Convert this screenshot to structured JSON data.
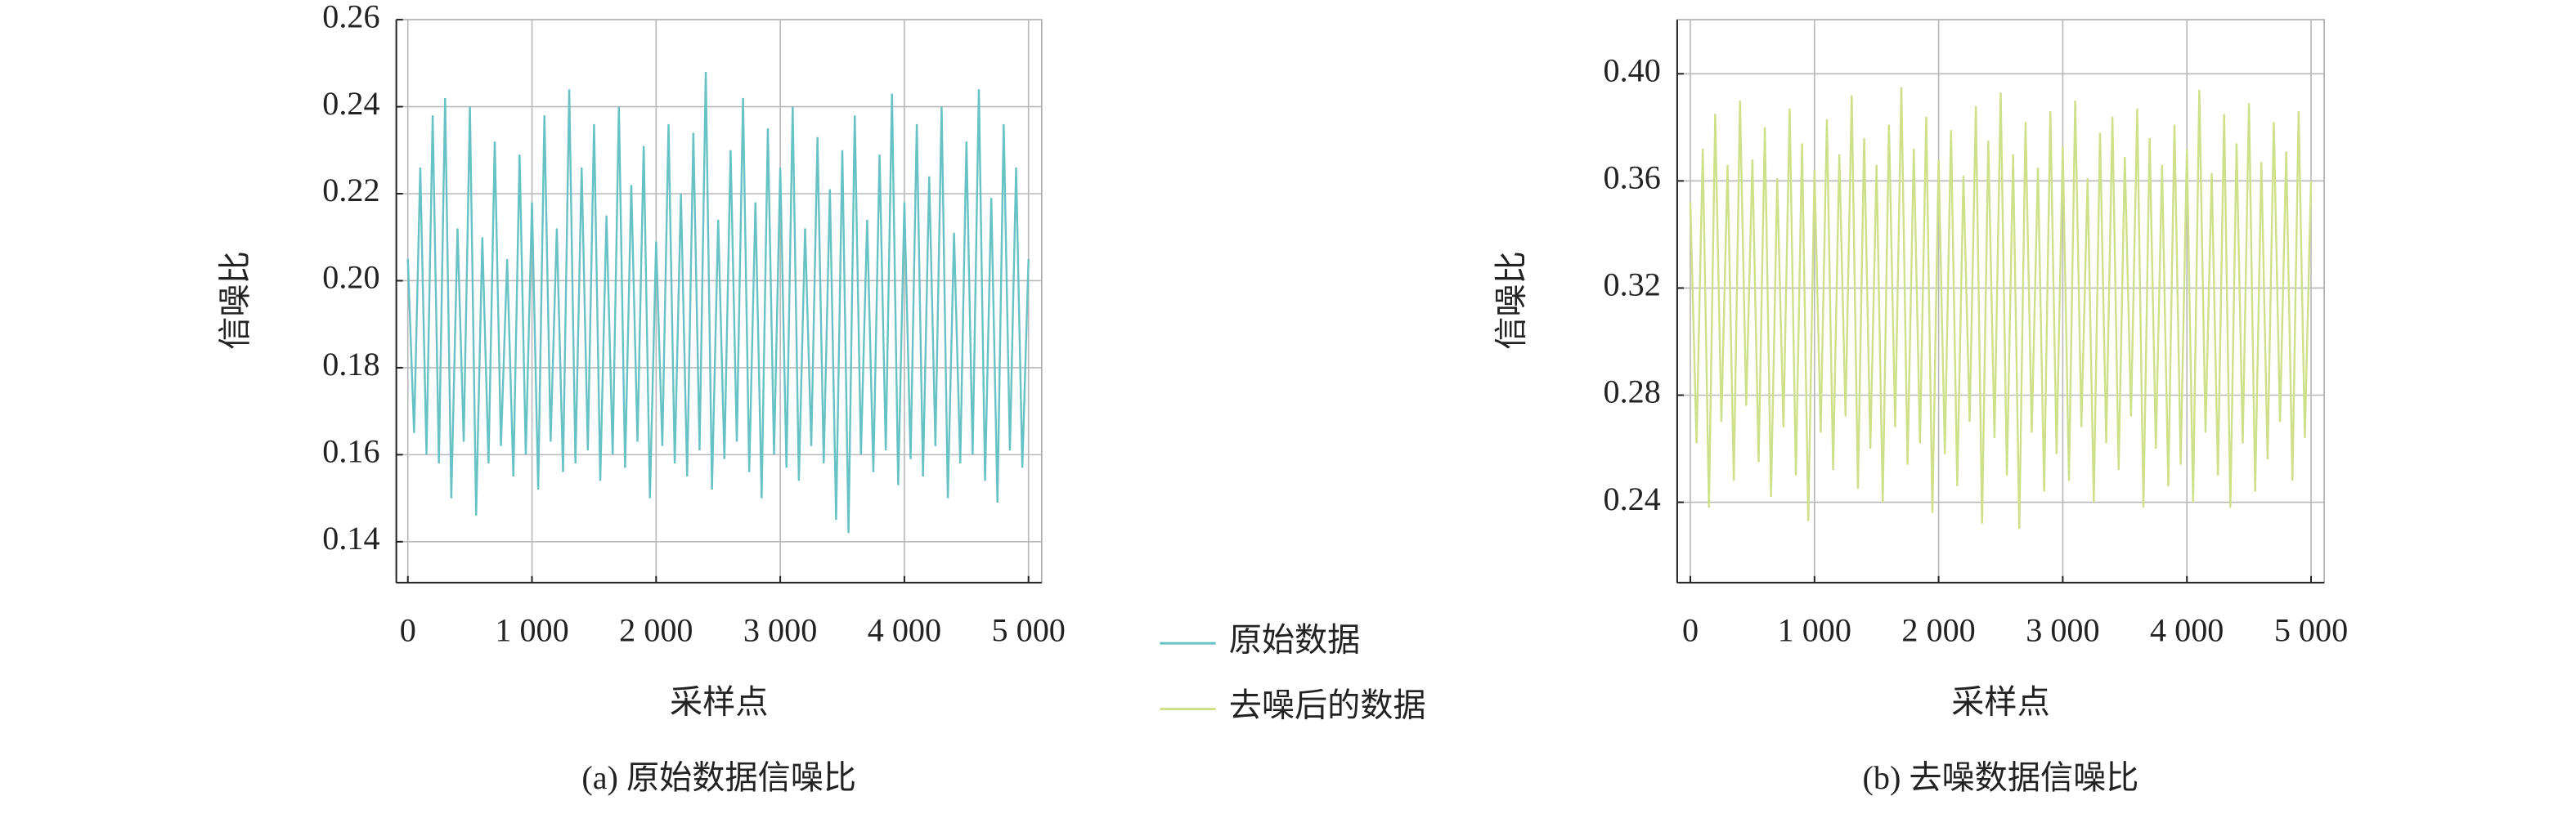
{
  "chart_data": [
    {
      "type": "line",
      "caption": "(a) 原始数据信噪比",
      "xlabel": "采样点",
      "ylabel": "信噪比",
      "xlim": [
        -93,
        5106
      ],
      "ylim": [
        0.1306,
        0.26
      ],
      "xticks": [
        0,
        {
          "value": 1000,
          "label": "1 000"
        },
        {
          "value": 2000,
          "label": "2 000"
        },
        {
          "value": 3000,
          "label": "3 000"
        },
        {
          "value": 4000,
          "label": "4 000"
        },
        {
          "value": 5000,
          "label": "5 000"
        }
      ],
      "yticks": [
        0.14,
        0.16,
        0.18,
        {
          "value": 0.2,
          "label": "0.20"
        },
        0.22,
        0.24,
        0.26
      ],
      "grid": true,
      "x": [
        0,
        50,
        100,
        150,
        200,
        250,
        300,
        350,
        400,
        450,
        500,
        550,
        600,
        650,
        700,
        750,
        800,
        850,
        900,
        950,
        1000,
        1050,
        1100,
        1150,
        1200,
        1250,
        1300,
        1350,
        1400,
        1450,
        1500,
        1550,
        1600,
        1650,
        1700,
        1750,
        1800,
        1850,
        1900,
        1950,
        2000,
        2050,
        2100,
        2150,
        2200,
        2250,
        2300,
        2350,
        2400,
        2450,
        2500,
        2550,
        2600,
        2650,
        2700,
        2750,
        2800,
        2850,
        2900,
        2950,
        3000,
        3050,
        3100,
        3150,
        3200,
        3250,
        3300,
        3350,
        3400,
        3450,
        3500,
        3550,
        3600,
        3650,
        3700,
        3750,
        3800,
        3850,
        3900,
        3950,
        4000,
        4050,
        4100,
        4150,
        4200,
        4250,
        4300,
        4350,
        4400,
        4450,
        4500,
        4550,
        4600,
        4650,
        4700,
        4750,
        4800,
        4850,
        4900,
        4950,
        5000
      ],
      "series": [
        {
          "name": "原始数据",
          "color": "#66c2c4",
          "values": [
            0.205,
            0.165,
            0.226,
            0.16,
            0.238,
            0.158,
            0.242,
            0.15,
            0.212,
            0.163,
            0.24,
            0.146,
            0.21,
            0.158,
            0.232,
            0.162,
            0.205,
            0.155,
            0.229,
            0.16,
            0.218,
            0.152,
            0.238,
            0.163,
            0.212,
            0.156,
            0.244,
            0.158,
            0.226,
            0.161,
            0.236,
            0.154,
            0.215,
            0.16,
            0.24,
            0.157,
            0.222,
            0.163,
            0.231,
            0.15,
            0.209,
            0.162,
            0.236,
            0.158,
            0.22,
            0.155,
            0.234,
            0.161,
            0.248,
            0.152,
            0.214,
            0.159,
            0.23,
            0.163,
            0.242,
            0.156,
            0.218,
            0.15,
            0.235,
            0.16,
            0.226,
            0.157,
            0.24,
            0.154,
            0.212,
            0.162,
            0.233,
            0.158,
            0.221,
            0.145,
            0.23,
            0.142,
            0.238,
            0.16,
            0.214,
            0.156,
            0.229,
            0.161,
            0.243,
            0.153,
            0.218,
            0.159,
            0.236,
            0.155,
            0.224,
            0.162,
            0.24,
            0.15,
            0.211,
            0.158,
            0.232,
            0.16,
            0.244,
            0.154,
            0.219,
            0.149,
            0.236,
            0.161,
            0.226,
            0.157,
            0.205
          ]
        }
      ]
    },
    {
      "type": "line",
      "caption": "(b) 去噪数据信噪比",
      "xlabel": "采样点",
      "ylabel": "信噪比",
      "xlim": [
        -106,
        5106
      ],
      "ylim": [
        0.21,
        0.4202
      ],
      "xticks": [
        0,
        {
          "value": 1000,
          "label": "1 000"
        },
        {
          "value": 2000,
          "label": "2 000"
        },
        {
          "value": 3000,
          "label": "3 000"
        },
        {
          "value": 4000,
          "label": "4 000"
        },
        {
          "value": 5000,
          "label": "5 000"
        }
      ],
      "yticks": [
        0.24,
        0.28,
        0.32,
        0.36,
        {
          "value": 0.4,
          "label": "0.40"
        }
      ],
      "grid": true,
      "x": [
        0,
        50,
        100,
        150,
        200,
        250,
        300,
        350,
        400,
        450,
        500,
        550,
        600,
        650,
        700,
        750,
        800,
        850,
        900,
        950,
        1000,
        1050,
        1100,
        1150,
        1200,
        1250,
        1300,
        1350,
        1400,
        1450,
        1500,
        1550,
        1600,
        1650,
        1700,
        1750,
        1800,
        1850,
        1900,
        1950,
        2000,
        2050,
        2100,
        2150,
        2200,
        2250,
        2300,
        2350,
        2400,
        2450,
        2500,
        2550,
        2600,
        2650,
        2700,
        2750,
        2800,
        2850,
        2900,
        2950,
        3000,
        3050,
        3100,
        3150,
        3200,
        3250,
        3300,
        3350,
        3400,
        3450,
        3500,
        3550,
        3600,
        3650,
        3700,
        3750,
        3800,
        3850,
        3900,
        3950,
        4000,
        4050,
        4100,
        4150,
        4200,
        4250,
        4300,
        4350,
        4400,
        4450,
        4500,
        4550,
        4600,
        4650,
        4700,
        4750,
        4800,
        4850,
        4900,
        4950,
        5000
      ],
      "series": [
        {
          "name": "去噪后的数据",
          "color": "#cfe08a",
          "values": [
            0.352,
            0.262,
            0.372,
            0.238,
            0.385,
            0.27,
            0.366,
            0.248,
            0.39,
            0.276,
            0.368,
            0.255,
            0.38,
            0.242,
            0.361,
            0.268,
            0.387,
            0.25,
            0.374,
            0.233,
            0.364,
            0.266,
            0.383,
            0.252,
            0.37,
            0.272,
            0.392,
            0.245,
            0.376,
            0.26,
            0.366,
            0.24,
            0.381,
            0.268,
            0.395,
            0.254,
            0.372,
            0.262,
            0.384,
            0.236,
            0.368,
            0.258,
            0.379,
            0.246,
            0.362,
            0.27,
            0.388,
            0.232,
            0.375,
            0.264,
            0.393,
            0.25,
            0.37,
            0.23,
            0.382,
            0.266,
            0.365,
            0.244,
            0.386,
            0.258,
            0.373,
            0.248,
            0.39,
            0.268,
            0.361,
            0.24,
            0.378,
            0.262,
            0.384,
            0.252,
            0.369,
            0.272,
            0.387,
            0.238,
            0.376,
            0.26,
            0.366,
            0.246,
            0.381,
            0.254,
            0.372,
            0.24,
            0.394,
            0.266,
            0.363,
            0.25,
            0.385,
            0.238,
            0.374,
            0.262,
            0.389,
            0.244,
            0.367,
            0.256,
            0.382,
            0.27,
            0.371,
            0.248,
            0.386,
            0.264,
            0.36
          ]
        }
      ]
    }
  ]
}
